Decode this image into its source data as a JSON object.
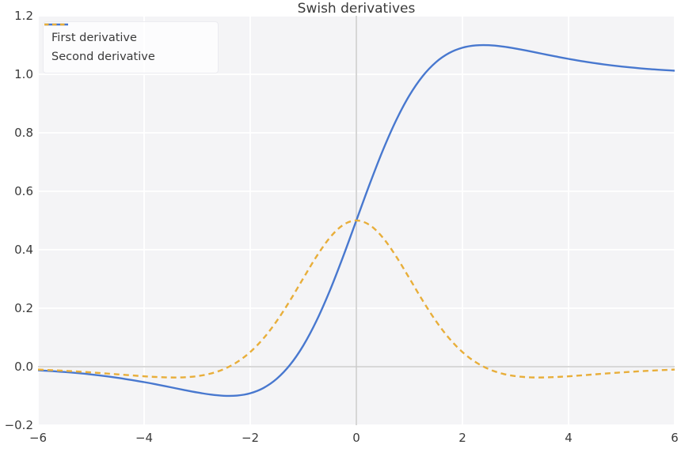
{
  "title": "Swish derivatives",
  "colors": {
    "figure_background": "#ffffff",
    "plot_background": "#f4f4f6",
    "grid": "#ffffff",
    "zero_line": "#cccccc",
    "text": "#3a3a3a",
    "first_derivative": "#4878cf",
    "second_derivative": "#e8ae3a"
  },
  "chart_data": {
    "type": "line",
    "title": "Swish derivatives",
    "xlabel": "",
    "ylabel": "",
    "xlim": [
      -6,
      6
    ],
    "ylim": [
      -0.2,
      1.2
    ],
    "grid": true,
    "zero_lines": {
      "x": 0,
      "y": 0
    },
    "legend_position": "upper left",
    "xticks": [
      -6,
      -4,
      -2,
      0,
      2,
      4,
      6
    ],
    "xtick_labels": [
      "−6",
      "−4",
      "−2",
      "0",
      "2",
      "4",
      "6"
    ],
    "yticks": [
      -0.2,
      0.0,
      0.2,
      0.4,
      0.6,
      0.8,
      1.0,
      1.2
    ],
    "ytick_labels": [
      "−0.2",
      "0.0",
      "0.2",
      "0.4",
      "0.6",
      "0.8",
      "1.0",
      "1.2"
    ],
    "x": [
      -6,
      -5.5,
      -5,
      -4.5,
      -4,
      -3.75,
      -3.5,
      -3.25,
      -3,
      -2.75,
      -2.5,
      -2.25,
      -2,
      -1.75,
      -1.5,
      -1.25,
      -1,
      -0.75,
      -0.5,
      -0.25,
      0,
      0.25,
      0.5,
      0.75,
      1,
      1.25,
      1.5,
      1.75,
      2,
      2.25,
      2.5,
      2.75,
      3,
      3.25,
      3.5,
      3.75,
      4,
      4.5,
      5,
      5.5,
      6
    ],
    "series": [
      {
        "name": "First derivative",
        "color": "#4878cf",
        "style": "solid",
        "values": [
          -0.0123,
          -0.0182,
          -0.0265,
          -0.0379,
          -0.0527,
          -0.0612,
          -0.0703,
          -0.0795,
          -0.0881,
          -0.0952,
          -0.0994,
          -0.0987,
          -0.0908,
          -0.0727,
          -0.0413,
          0.0063,
          0.0723,
          0.1574,
          0.26,
          0.3763,
          0.5,
          0.6237,
          0.74,
          0.8426,
          0.9277,
          0.9937,
          1.0413,
          1.0727,
          1.0908,
          1.0987,
          1.0994,
          1.0952,
          1.0881,
          1.0795,
          1.0703,
          1.0612,
          1.0527,
          1.0379,
          1.0265,
          1.0182,
          1.0123
        ]
      },
      {
        "name": "Second derivative",
        "color": "#e8ae3a",
        "style": "dashed",
        "values": [
          -0.0098,
          -0.014,
          -0.0195,
          -0.0261,
          -0.0328,
          -0.0354,
          -0.0368,
          -0.0362,
          -0.0323,
          -0.0237,
          -0.0085,
          0.0154,
          0.0501,
          0.0969,
          0.1562,
          0.2262,
          0.3024,
          0.3772,
          0.4412,
          0.4846,
          0.5,
          0.4846,
          0.4412,
          0.3772,
          0.3024,
          0.2262,
          0.1562,
          0.0969,
          0.0501,
          0.0154,
          -0.0085,
          -0.0237,
          -0.0323,
          -0.0362,
          -0.0368,
          -0.0354,
          -0.0328,
          -0.0261,
          -0.0195,
          -0.014,
          -0.0098
        ]
      }
    ]
  }
}
